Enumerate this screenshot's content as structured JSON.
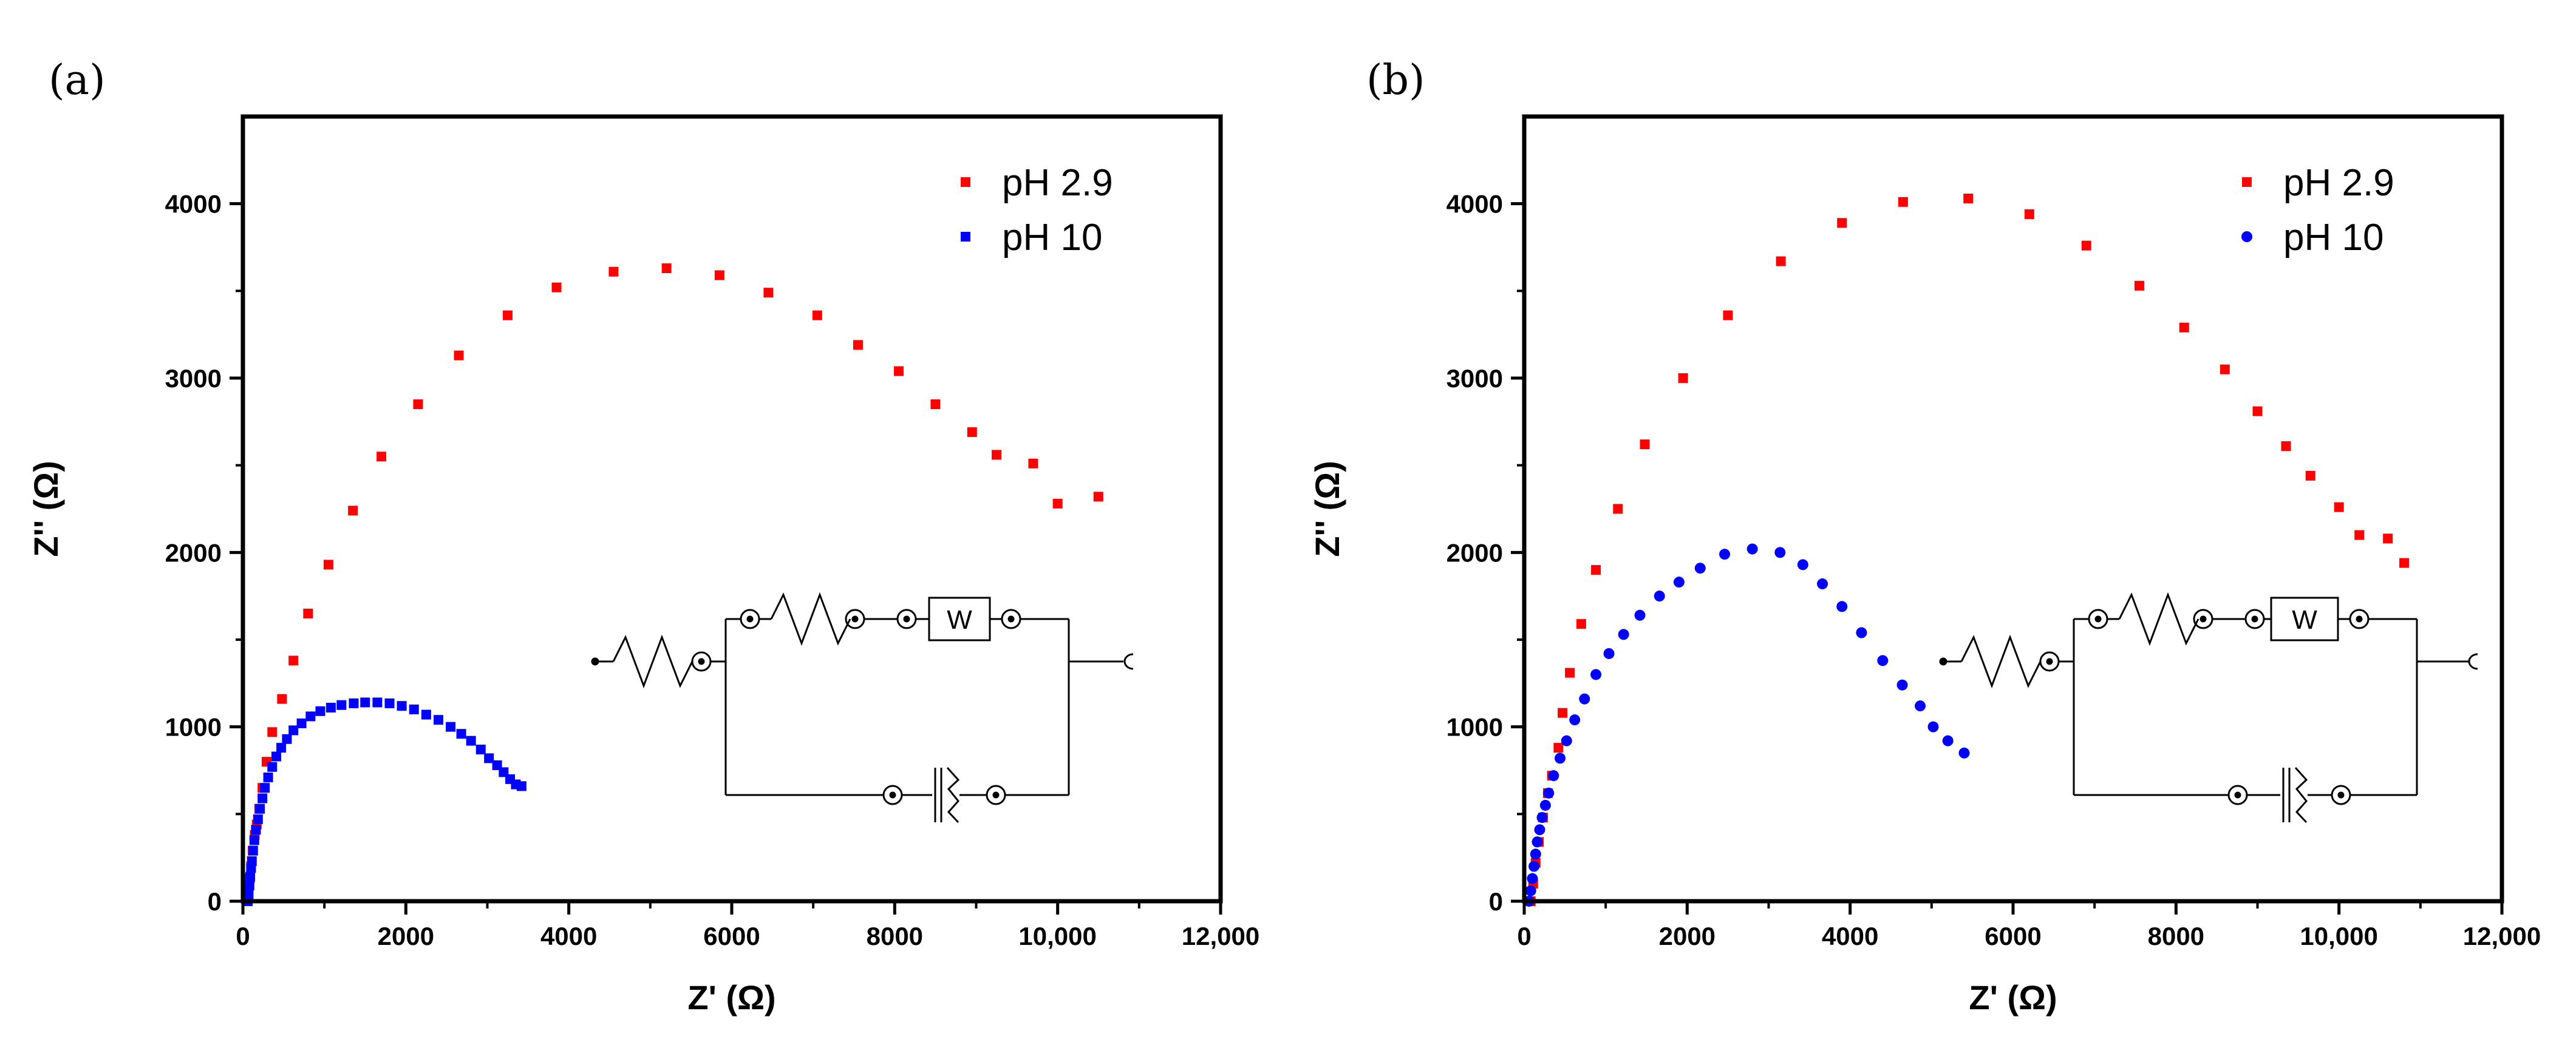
{
  "figure": {
    "panels": [
      "(a)",
      "(b)"
    ],
    "circuit_element_label": "W"
  },
  "chart_data": [
    {
      "type": "scatter",
      "panel_label": "(a)",
      "xlabel": "Z' (Ω)",
      "ylabel": "Z'' (Ω)",
      "xlim": [
        0,
        12000
      ],
      "ylim": [
        0,
        4500
      ],
      "xticks": [
        0,
        2000,
        4000,
        6000,
        8000,
        10000,
        12000
      ],
      "xtick_labels": [
        "0",
        "2000",
        "4000",
        "6000",
        "8000",
        "10,000",
        "12,000"
      ],
      "yticks": [
        0,
        1000,
        2000,
        3000,
        4000
      ],
      "ytick_labels": [
        "0",
        "1000",
        "2000",
        "3000",
        "4000"
      ],
      "legend_position": "top-right",
      "series": [
        {
          "name": "pH 2.9",
          "color": "#ff0000",
          "marker": "square",
          "points": [
            [
              60,
              0
            ],
            [
              70,
              60
            ],
            [
              85,
              130
            ],
            [
              100,
              200
            ],
            [
              120,
              290
            ],
            [
              145,
              380
            ],
            [
              170,
              440
            ],
            [
              200,
              530
            ],
            [
              240,
              650
            ],
            [
              290,
              800
            ],
            [
              360,
              970
            ],
            [
              480,
              1160
            ],
            [
              620,
              1380
            ],
            [
              800,
              1650
            ],
            [
              1050,
              1930
            ],
            [
              1350,
              2240
            ],
            [
              1700,
              2550
            ],
            [
              2150,
              2850
            ],
            [
              2650,
              3130
            ],
            [
              3250,
              3360
            ],
            [
              3850,
              3520
            ],
            [
              4550,
              3610
            ],
            [
              5200,
              3630
            ],
            [
              5850,
              3590
            ],
            [
              6450,
              3490
            ],
            [
              7050,
              3360
            ],
            [
              7550,
              3190
            ],
            [
              8050,
              3040
            ],
            [
              8500,
              2850
            ],
            [
              8950,
              2690
            ],
            [
              9250,
              2560
            ],
            [
              9700,
              2510
            ],
            [
              10000,
              2280
            ],
            [
              10500,
              2320
            ]
          ]
        },
        {
          "name": "pH 10",
          "color": "#0000ff",
          "marker": "square",
          "points": [
            [
              60,
              0
            ],
            [
              70,
              40
            ],
            [
              80,
              90
            ],
            [
              90,
              140
            ],
            [
              100,
              190
            ],
            [
              110,
              230
            ],
            [
              125,
              290
            ],
            [
              140,
              350
            ],
            [
              160,
              410
            ],
            [
              185,
              470
            ],
            [
              210,
              530
            ],
            [
              240,
              590
            ],
            [
              270,
              650
            ],
            [
              310,
              710
            ],
            [
              360,
              770
            ],
            [
              410,
              830
            ],
            [
              470,
              880
            ],
            [
              540,
              930
            ],
            [
              620,
              980
            ],
            [
              720,
              1020
            ],
            [
              830,
              1060
            ],
            [
              950,
              1090
            ],
            [
              1080,
              1110
            ],
            [
              1210,
              1125
            ],
            [
              1360,
              1135
            ],
            [
              1500,
              1140
            ],
            [
              1650,
              1140
            ],
            [
              1800,
              1135
            ],
            [
              1950,
              1120
            ],
            [
              2100,
              1100
            ],
            [
              2250,
              1070
            ],
            [
              2400,
              1040
            ],
            [
              2550,
              1000
            ],
            [
              2680,
              960
            ],
            [
              2800,
              920
            ],
            [
              2920,
              870
            ],
            [
              3020,
              820
            ],
            [
              3120,
              780
            ],
            [
              3200,
              740
            ],
            [
              3280,
              700
            ],
            [
              3350,
              670
            ],
            [
              3420,
              660
            ]
          ]
        }
      ]
    },
    {
      "type": "scatter",
      "panel_label": "(b)",
      "xlabel": "Z' (Ω)",
      "ylabel": "Z'' (Ω)",
      "xlim": [
        0,
        12000
      ],
      "ylim": [
        0,
        4500
      ],
      "xticks": [
        0,
        2000,
        4000,
        6000,
        8000,
        10000,
        12000
      ],
      "xtick_labels": [
        "0",
        "2000",
        "4000",
        "6000",
        "8000",
        "10,000",
        "12,000"
      ],
      "yticks": [
        0,
        1000,
        2000,
        3000,
        4000
      ],
      "ytick_labels": [
        "0",
        "1000",
        "2000",
        "3000",
        "4000"
      ],
      "legend_position": "top-right",
      "series": [
        {
          "name": "pH 2.9",
          "color": "#ff0000",
          "marker": "square",
          "points": [
            [
              80,
              0
            ],
            [
              110,
              100
            ],
            [
              140,
              220
            ],
            [
              180,
              340
            ],
            [
              230,
              480
            ],
            [
              290,
              620
            ],
            [
              340,
              720
            ],
            [
              420,
              880
            ],
            [
              470,
              1080
            ],
            [
              560,
              1310
            ],
            [
              700,
              1590
            ],
            [
              880,
              1900
            ],
            [
              1150,
              2250
            ],
            [
              1480,
              2620
            ],
            [
              1950,
              3000
            ],
            [
              2500,
              3360
            ],
            [
              3150,
              3670
            ],
            [
              3900,
              3890
            ],
            [
              4650,
              4010
            ],
            [
              5450,
              4030
            ],
            [
              6200,
              3940
            ],
            [
              6900,
              3760
            ],
            [
              7550,
              3530
            ],
            [
              8100,
              3290
            ],
            [
              8600,
              3050
            ],
            [
              9000,
              2810
            ],
            [
              9350,
              2610
            ],
            [
              9650,
              2440
            ],
            [
              10000,
              2260
            ],
            [
              10250,
              2100
            ],
            [
              10600,
              2080
            ],
            [
              10800,
              1940
            ]
          ]
        },
        {
          "name": "pH 10",
          "color": "#0000ff",
          "marker": "circle",
          "points": [
            [
              60,
              0
            ],
            [
              80,
              60
            ],
            [
              100,
              130
            ],
            [
              120,
              200
            ],
            [
              140,
              270
            ],
            [
              160,
              340
            ],
            [
              190,
              410
            ],
            [
              220,
              480
            ],
            [
              260,
              550
            ],
            [
              300,
              620
            ],
            [
              360,
              720
            ],
            [
              440,
              820
            ],
            [
              520,
              920
            ],
            [
              620,
              1040
            ],
            [
              740,
              1160
            ],
            [
              880,
              1300
            ],
            [
              1040,
              1420
            ],
            [
              1220,
              1530
            ],
            [
              1420,
              1640
            ],
            [
              1660,
              1750
            ],
            [
              1900,
              1830
            ],
            [
              2160,
              1910
            ],
            [
              2460,
              1990
            ],
            [
              2800,
              2020
            ],
            [
              3140,
              2000
            ],
            [
              3420,
              1930
            ],
            [
              3660,
              1820
            ],
            [
              3900,
              1690
            ],
            [
              4140,
              1540
            ],
            [
              4400,
              1380
            ],
            [
              4640,
              1240
            ],
            [
              4860,
              1120
            ],
            [
              5020,
              1000
            ],
            [
              5200,
              920
            ],
            [
              5400,
              850
            ]
          ]
        }
      ]
    }
  ]
}
